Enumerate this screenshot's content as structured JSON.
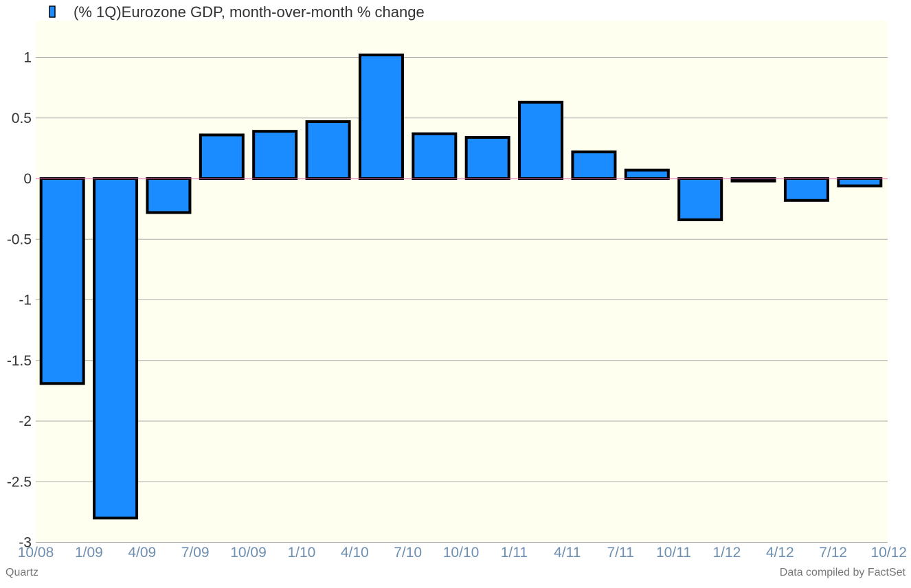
{
  "chart_data": {
    "type": "bar",
    "series": [
      {
        "name": "(% 1Q)Eurozone GDP, month-over-month % change",
        "color": "#1a8cff",
        "values": [
          -1.69,
          -2.8,
          -0.28,
          0.36,
          0.39,
          0.47,
          1.02,
          0.37,
          0.34,
          0.63,
          0.22,
          0.07,
          -0.34,
          -0.02,
          -0.18,
          -0.06
        ]
      }
    ],
    "categories": [
      "10/08",
      "1/09",
      "4/09",
      "7/09",
      "10/09",
      "1/10",
      "4/10",
      "7/10",
      "10/10",
      "1/11",
      "4/11",
      "7/11",
      "10/11",
      "1/12",
      "4/12",
      "7/12"
    ],
    "x_tick_labels": [
      "10/08",
      "1/09",
      "4/09",
      "7/09",
      "10/09",
      "1/10",
      "4/10",
      "7/10",
      "10/10",
      "1/11",
      "4/11",
      "7/11",
      "10/11",
      "1/12",
      "4/12",
      "7/12",
      "10/12"
    ],
    "y_tick_labels": [
      "1",
      "0.5",
      "0",
      "-0.5",
      "-1",
      "-1.5",
      "-2",
      "-2.5",
      "-3"
    ],
    "y_ticks": [
      1,
      0.5,
      0,
      -0.5,
      -1,
      -1.5,
      -2,
      -2.5,
      -3
    ],
    "ylim": [
      -3,
      1.3
    ],
    "grid": true,
    "legend_position": "top-left",
    "plot_background": "#fffff0",
    "zero_line_color": "#dd66aa",
    "bar_outline_color": "#000000"
  },
  "footer": {
    "source_left": "Quartz",
    "source_right": "Data compiled by FactSet"
  }
}
